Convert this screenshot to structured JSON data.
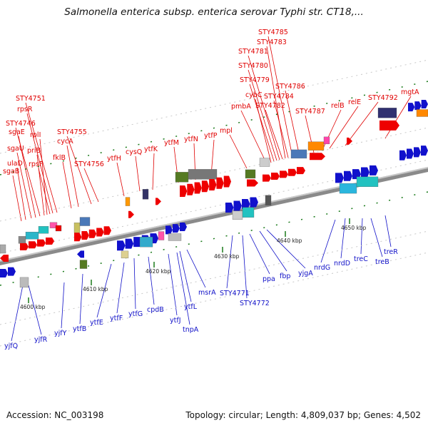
{
  "title": "Salmonella enterica subsp. enterica serovar Typhi str. CT18,...",
  "footer": {
    "accession": "Accession: NC_003198",
    "summary": "Topology: circular; Length: 4,809,037 bp; Genes: 4,502"
  },
  "colors": {
    "top_strand": "#ee0000",
    "bottom_strand": "#1111cc",
    "backbone": "#888888"
  },
  "ticks": [
    "4600 kbp",
    "4610 kbp",
    "4620 kbp",
    "4630 kbp",
    "4640 kbp",
    "4650 kbp"
  ],
  "top_genes": [
    "sgaB",
    "ulaD",
    "sgaU",
    "sgaE",
    "STY4746",
    "priB",
    "rplI",
    "rpsF",
    "rpsR",
    "STY4751",
    "fklB",
    "cycA",
    "STY4755",
    "STY4756",
    "ytfH",
    "cysQ",
    "ytfK",
    "ytfM",
    "ytfN",
    "ytfP",
    "mpl",
    "pmbA",
    "cybC",
    "STY4779",
    "STY4780",
    "STY4781",
    "STY4782",
    "STY4783",
    "STY4784",
    "STY4785",
    "STY4786",
    "STY4787",
    "relB",
    "relE",
    "STY4792",
    "mgtA"
  ],
  "bottom_genes": [
    "yjfQ",
    "yjfR",
    "yjfY",
    "ytfB",
    "ytfE",
    "ytfF",
    "ytfG",
    "cpdB",
    "ytfJ",
    "tnpA",
    "ytfL",
    "msrA",
    "STY4771",
    "STY4772",
    "ppa",
    "fbp",
    "yjgA",
    "nrdG",
    "nrdD",
    "treC",
    "treB",
    "treR"
  ]
}
